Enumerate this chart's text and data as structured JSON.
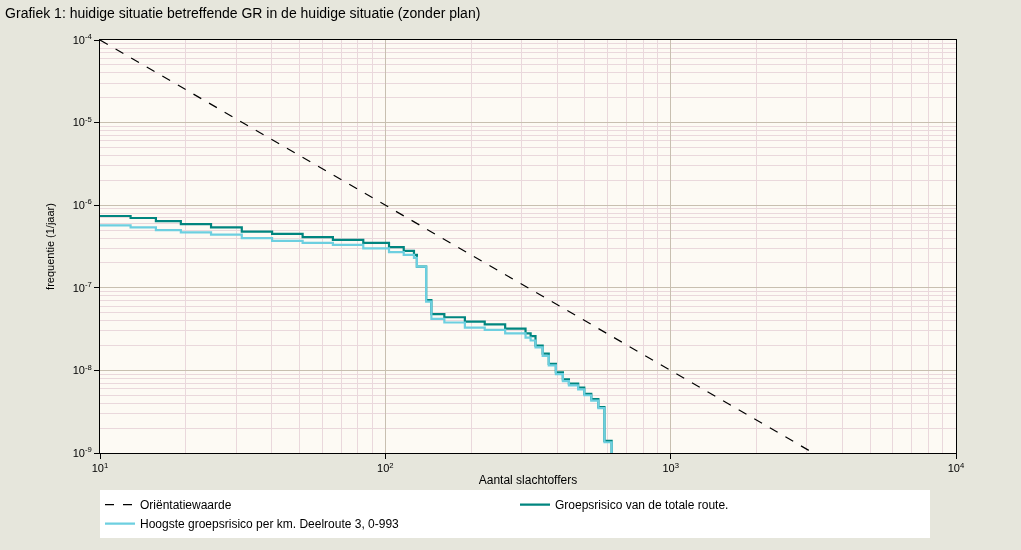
{
  "chart_data": {
    "type": "step",
    "title": "Grafiek 1: huidige situatie betreffende GR in de huidige situatie (zonder plan)",
    "xlabel": "Aantal slachtoffers",
    "ylabel": "frequentie (1/jaar)",
    "log": "xy",
    "xlim": [
      10,
      10000
    ],
    "ylim": [
      1e-09,
      0.0001
    ],
    "xticks": [
      {
        "value": 10,
        "label": "10$^{1}$"
      },
      {
        "value": 100,
        "label": "10$^{2}$"
      },
      {
        "value": 1000,
        "label": "10$^{3}$"
      },
      {
        "value": 10000,
        "label": "10$^{4}$"
      }
    ],
    "yticks": [
      {
        "value": 1e-09,
        "label": "10$^{-9}$"
      },
      {
        "value": 1e-08,
        "label": "10$^{-8}$"
      },
      {
        "value": 1e-07,
        "label": "10$^{-7}$"
      },
      {
        "value": 1e-06,
        "label": "10$^{-6}$"
      },
      {
        "value": 1e-05,
        "label": "10$^{-5}$"
      },
      {
        "value": 0.0001,
        "label": "10$^{-4}$"
      }
    ],
    "grid": true,
    "legend": "bottom",
    "marker": "none",
    "series": [
      {
        "name": "Oriëntatiewaarde",
        "color": "#000000",
        "type": "line",
        "line_style": "dashed",
        "x": [
          10,
          3162
        ],
        "values": [
          0.0001,
          1e-09
        ]
      },
      {
        "name": "Groepsrisico van de totale route.",
        "color": "#00857f",
        "line_style": "solid",
        "x": [
          10,
          12.8,
          15.7,
          19.2,
          24.5,
          31.4,
          40.1,
          51.3,
          65.5,
          83.7,
          103,
          116,
          126,
          129,
          139,
          145,
          161,
          190,
          223,
          263,
          310,
          323,
          336,
          356,
          374,
          396,
          419,
          440,
          474,
          498,
          527,
          558,
          586,
          621
        ],
        "values": [
          7.4e-07,
          7e-07,
          6.4e-07,
          5.9e-07,
          5.4e-07,
          4.8e-07,
          4.5e-07,
          4.1e-07,
          3.8e-07,
          3.5e-07,
          3.1e-07,
          2.8e-07,
          2.5e-07,
          1.8e-07,
          7.1e-08,
          4.8e-08,
          4.4e-08,
          3.9e-08,
          3.6e-08,
          3.2e-08,
          2.8e-08,
          2.6e-08,
          2e-08,
          1.6e-08,
          1.2e-08,
          9.5e-09,
          7.8e-09,
          6.9e-09,
          6.2e-09,
          5.2e-09,
          4.5e-09,
          3.6e-09,
          1.4e-09,
          1e-09
        ]
      },
      {
        "name": "Hoogste groepsrisico per km. Deelroute 3, 0-993",
        "color": "#6dcfe0",
        "line_style": "solid",
        "x": [
          10,
          12.8,
          15.7,
          19.2,
          24.5,
          31.4,
          40.1,
          51.3,
          65.5,
          83.7,
          103,
          116,
          126,
          129,
          139,
          145,
          161,
          190,
          223,
          263,
          310,
          323,
          336,
          356,
          374,
          396,
          419,
          440,
          474,
          498,
          527,
          558,
          586,
          621
        ],
        "values": [
          5.7e-07,
          5.4e-07,
          5e-07,
          4.7e-07,
          4.4e-07,
          4e-07,
          3.7e-07,
          3.5e-07,
          3.3e-07,
          3e-07,
          2.7e-07,
          2.5e-07,
          2.3e-07,
          1.8e-07,
          6.8e-08,
          4.2e-08,
          3.8e-08,
          3.3e-08,
          3.1e-08,
          2.8e-08,
          2.5e-08,
          2.3e-08,
          1.9e-08,
          1.5e-08,
          1.15e-08,
          9e-09,
          7.4e-09,
          6.6e-09,
          5.9e-09,
          5e-09,
          4.3e-09,
          3.5e-09,
          1.35e-09,
          1e-09
        ]
      }
    ]
  }
}
